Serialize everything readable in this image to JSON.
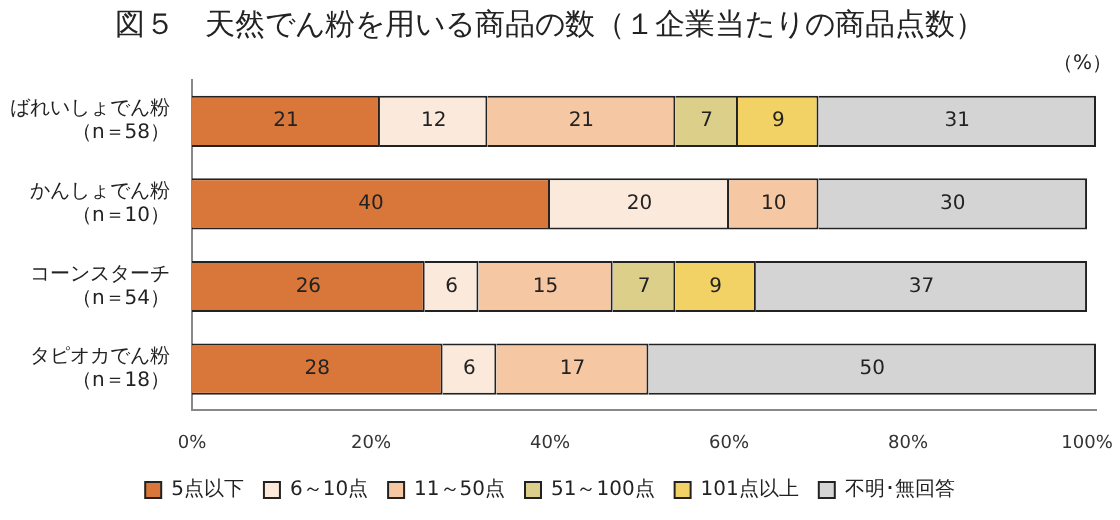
{
  "chart_data": {
    "type": "bar",
    "orientation": "horizontal",
    "stacked": true,
    "title": "図５　天然でん粉を用いる商品の数（１企業当たりの商品点数）",
    "categories": [
      "ばれいしょでん粉（n＝58）",
      "かんしょでん粉（n＝10）",
      "コーンスターチ（n＝54）",
      "タピオカでん粉（n＝18）"
    ],
    "series": [
      {
        "name": "5点以下",
        "color": "#d9773a",
        "values": [
          21,
          40,
          26,
          28
        ]
      },
      {
        "name": "6～10点",
        "color": "#fbeadb",
        "values": [
          12,
          20,
          6,
          6
        ]
      },
      {
        "name": "11～50点",
        "color": "#f6c7a3",
        "values": [
          21,
          10,
          15,
          17
        ]
      },
      {
        "name": "51～100点",
        "color": "#dccf8a",
        "values": [
          7,
          null,
          7,
          null
        ]
      },
      {
        "name": "101点以上",
        "color": "#f2d264",
        "values": [
          9,
          null,
          9,
          null
        ]
      },
      {
        "name": "不明･無回答",
        "color": "#d4d4d4",
        "values": [
          31,
          30,
          37,
          50
        ]
      }
    ],
    "xlim": [
      0,
      101
    ],
    "xticks": [
      {
        "value": 0,
        "label": "0%"
      },
      {
        "value": 20,
        "label": "20%"
      },
      {
        "value": 40,
        "label": "40%"
      },
      {
        "value": 60,
        "label": "60%"
      },
      {
        "value": 80,
        "label": "80%"
      },
      {
        "value": 100,
        "label": "100%"
      }
    ],
    "annotations": [
      "（%）"
    ],
    "data_labels": true,
    "grid": false,
    "legend": "bottom"
  }
}
